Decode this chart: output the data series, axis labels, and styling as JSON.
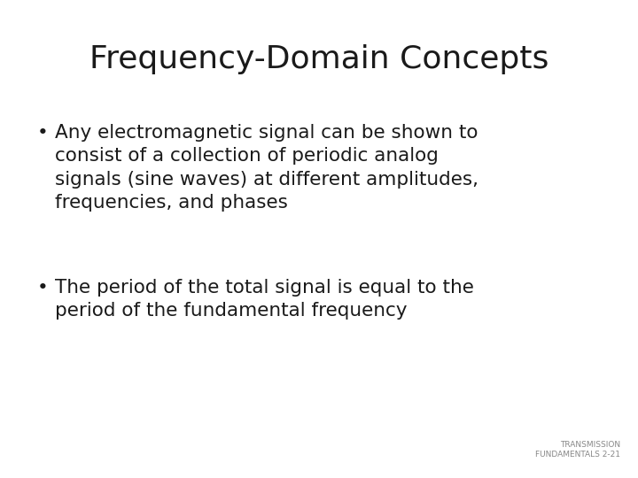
{
  "title": "Frequency-Domain Concepts",
  "title_fontsize": 26,
  "title_color": "#1a1a1a",
  "background_color": "#ffffff",
  "bullet1_line1": "Any electromagnetic signal can be shown to",
  "bullet1_line2": "consist of a collection of periodic analog",
  "bullet1_line3": "signals (sine waves) at different amplitudes,",
  "bullet1_line4": "frequencies, and phases",
  "bullet2_line1": "The period of the total signal is equal to the",
  "bullet2_line2": "period of the fundamental frequency",
  "bullet_fontsize": 15.5,
  "bullet_color": "#1a1a1a",
  "footer_line1": "TRANSMISSION",
  "footer_line2": "FUNDAMENTALS 2-21",
  "footer_fontsize": 6.5,
  "footer_color": "#888888"
}
